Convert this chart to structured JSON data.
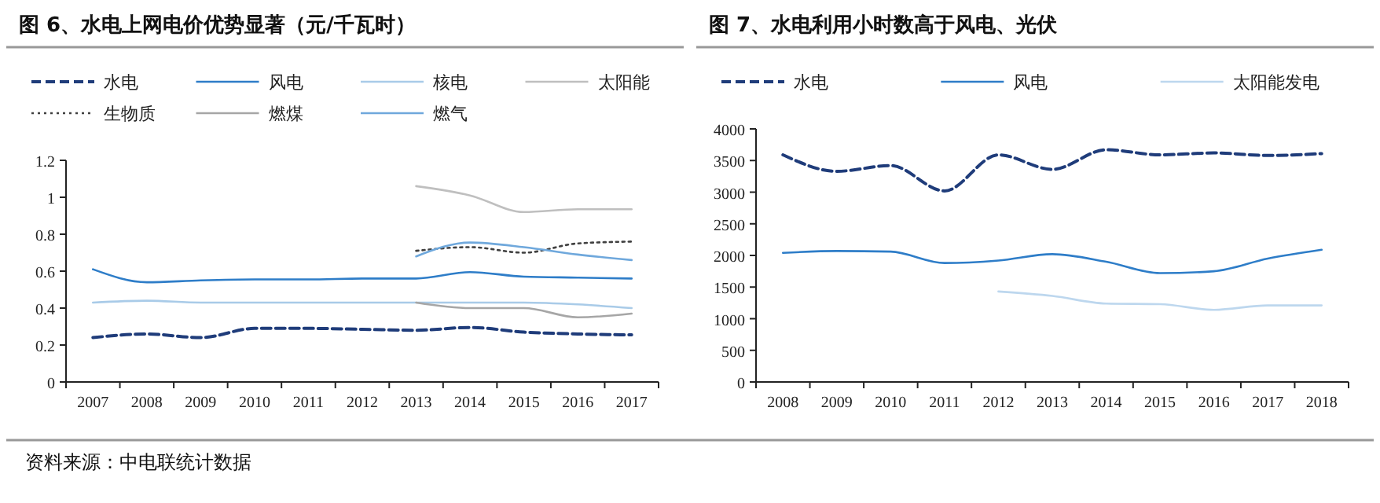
{
  "chart_data": [
    {
      "type": "line",
      "title": "图 6、水电上网电价优势显著（元/千瓦时）",
      "categories": [
        "2007",
        "2008",
        "2009",
        "2010",
        "2011",
        "2012",
        "2013",
        "2014",
        "2015",
        "2016",
        "2017"
      ],
      "ylim": [
        0,
        1.2
      ],
      "yticks": [
        0,
        0.2,
        0.4,
        0.6,
        0.8,
        1,
        1.2
      ],
      "grid": false,
      "legend": "top",
      "annotations": [
        "资料来源：中电联统计数据"
      ],
      "series": [
        {
          "name": "水电",
          "color": "#1f3c7a",
          "line_style": "dashed",
          "values": [
            0.24,
            0.26,
            0.24,
            0.29,
            0.29,
            0.285,
            0.28,
            0.295,
            0.27,
            0.26,
            0.255
          ]
        },
        {
          "name": "风电",
          "color": "#2e7dc8",
          "line_style": "solid",
          "values": [
            0.61,
            0.54,
            0.55,
            0.555,
            0.555,
            0.56,
            0.56,
            0.595,
            0.57,
            0.565,
            0.56
          ]
        },
        {
          "name": "核电",
          "color": "#a9cbe8",
          "line_style": "solid",
          "values": [
            0.43,
            0.44,
            0.43,
            0.43,
            0.43,
            0.43,
            0.43,
            0.43,
            0.43,
            0.42,
            0.4
          ]
        },
        {
          "name": "太阳能",
          "color": "#bfbfbf",
          "line_style": "solid",
          "values": [
            null,
            null,
            null,
            null,
            null,
            null,
            1.06,
            1.01,
            0.92,
            0.935,
            0.935
          ]
        },
        {
          "name": "生物质",
          "color": "#404040",
          "line_style": "dotted",
          "values": [
            null,
            null,
            null,
            null,
            null,
            null,
            0.71,
            0.73,
            0.7,
            0.75,
            0.76
          ]
        },
        {
          "name": "燃煤",
          "color": "#a6a6a6",
          "line_style": "solid",
          "values": [
            null,
            null,
            null,
            null,
            null,
            null,
            0.43,
            0.4,
            0.4,
            0.35,
            0.37
          ]
        },
        {
          "name": "燃气",
          "color": "#6fa8dc",
          "line_style": "solid",
          "values": [
            null,
            null,
            null,
            null,
            null,
            null,
            0.68,
            0.755,
            0.73,
            0.69,
            0.66
          ]
        }
      ]
    },
    {
      "type": "line",
      "title": "图 7、水电利用小时数高于风电、光伏",
      "categories": [
        "2008",
        "2009",
        "2010",
        "2011",
        "2012",
        "2013",
        "2014",
        "2015",
        "2016",
        "2017",
        "2018"
      ],
      "ylim": [
        0,
        4000
      ],
      "yticks": [
        0,
        500,
        1000,
        1500,
        2000,
        2500,
        3000,
        3500,
        4000
      ],
      "grid": false,
      "legend": "top",
      "series": [
        {
          "name": "水电",
          "color": "#1f3c7a",
          "line_style": "dashed",
          "values": [
            3590,
            3330,
            3420,
            3020,
            3590,
            3360,
            3670,
            3590,
            3620,
            3580,
            3610
          ]
        },
        {
          "name": "风电",
          "color": "#2e7dc8",
          "line_style": "solid",
          "values": [
            2040,
            2070,
            2060,
            1880,
            1920,
            2020,
            1900,
            1720,
            1750,
            1950,
            2090
          ]
        },
        {
          "name": "太阳能发电",
          "color": "#bdd7ee",
          "line_style": "solid",
          "values": [
            null,
            null,
            null,
            null,
            1430,
            1360,
            1240,
            1230,
            1140,
            1210,
            1210
          ]
        }
      ]
    }
  ]
}
